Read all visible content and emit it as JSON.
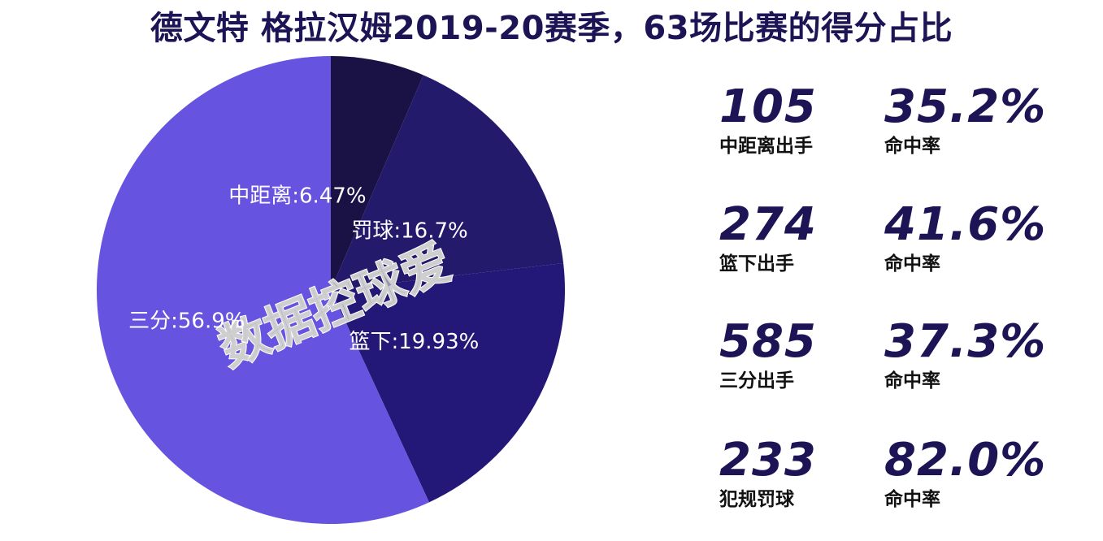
{
  "title": "德文特 格拉汉姆2019-20赛季，63场比赛的得分占比",
  "watermark": "数据控球爱",
  "colors": {
    "title": "#1d1456",
    "stat_value": "#1d1456",
    "stat_label": "#111111"
  },
  "chart_data": {
    "type": "pie",
    "title": "德文特 格拉汉姆2019-20赛季，63场比赛的得分占比",
    "start": "12 o'clock, clockwise",
    "slices": [
      {
        "name": "中距离",
        "value": 6.47,
        "label": "中距离:6.47%",
        "color": "#1a1245"
      },
      {
        "name": "罚球",
        "value": 16.7,
        "label": "罚球:16.7%",
        "color": "#231a6c"
      },
      {
        "name": "篮下",
        "value": 19.93,
        "label": "篮下:19.93%",
        "color": "#231777"
      },
      {
        "name": "三分",
        "value": 56.9,
        "label": "三分:56.9%",
        "color": "#6654e0"
      }
    ]
  },
  "stats": [
    {
      "attempts": "105",
      "attempts_label": "中距离出手",
      "pct": "35.2%",
      "pct_label": "命中率"
    },
    {
      "attempts": "274",
      "attempts_label": "篮下出手",
      "pct": "41.6%",
      "pct_label": "命中率"
    },
    {
      "attempts": "585",
      "attempts_label": "三分出手",
      "pct": "37.3%",
      "pct_label": "命中率"
    },
    {
      "attempts": "233",
      "attempts_label": "犯规罚球",
      "pct": "82.0%",
      "pct_label": "命中率"
    }
  ]
}
